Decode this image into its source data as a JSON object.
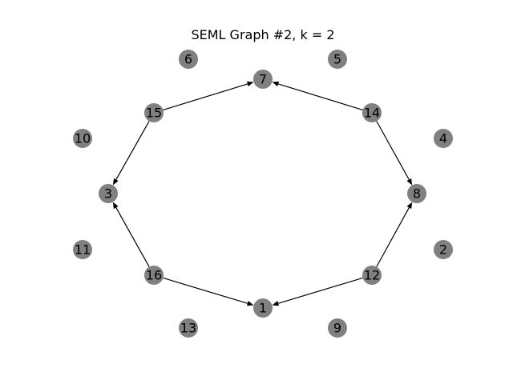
{
  "title": "SEML Graph #2, k = 2",
  "style": {
    "node_color": "#808080",
    "edge_color": "#000000",
    "background": "#ffffff"
  },
  "graph": {
    "directed": true,
    "nodes": [
      "6",
      "5",
      "7",
      "15",
      "14",
      "10",
      "4",
      "3",
      "8",
      "11",
      "2",
      "16",
      "12",
      "1",
      "13",
      "9"
    ],
    "edges": [
      {
        "from": "15",
        "to": "7"
      },
      {
        "from": "14",
        "to": "7"
      },
      {
        "from": "15",
        "to": "3"
      },
      {
        "from": "16",
        "to": "3"
      },
      {
        "from": "14",
        "to": "8"
      },
      {
        "from": "12",
        "to": "8"
      },
      {
        "from": "16",
        "to": "1"
      },
      {
        "from": "12",
        "to": "1"
      }
    ]
  }
}
